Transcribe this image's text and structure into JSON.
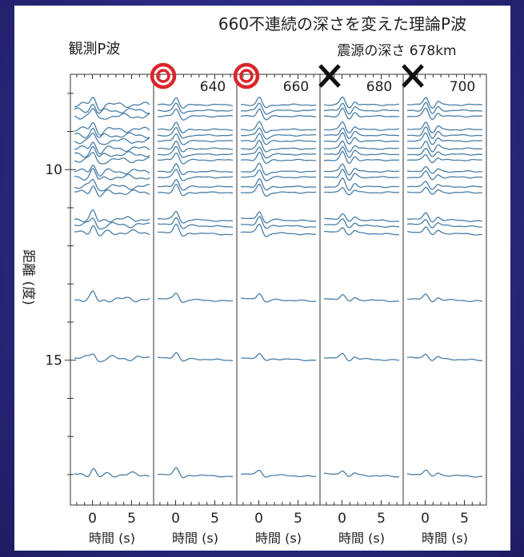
{
  "chart_data": {
    "type": "line",
    "title": "660不連続の深さを変えた理論P波",
    "observed_label": "観測P波",
    "hypocenter_label": "震源の深さ 678km",
    "ylabel": "距離 (度)",
    "ylim": [
      7.5,
      18.8
    ],
    "y_ticks": [
      10,
      15
    ],
    "xlim": [
      -2.5,
      7.5
    ],
    "x_ticks": [
      0,
      5
    ],
    "x_minor_ticks": [
      -2,
      -1,
      0,
      1,
      2,
      3,
      4,
      5,
      6,
      7
    ],
    "xlabel": "時間 (s)",
    "trace_color": "#4a7fa8",
    "panels": [
      {
        "label": "",
        "marker": "none"
      },
      {
        "label": "640",
        "marker": "double-circle",
        "marker_color": "#d9262c"
      },
      {
        "label": "660",
        "marker": "double-circle",
        "marker_color": "#d9262c"
      },
      {
        "label": "680",
        "marker": "cross",
        "marker_color": "#111111"
      },
      {
        "label": "700",
        "marker": "cross",
        "marker_color": "#111111"
      }
    ],
    "trace_distances": [
      8.3,
      8.45,
      8.6,
      8.95,
      9.1,
      9.25,
      9.45,
      9.6,
      9.75,
      10.05,
      10.2,
      10.45,
      10.6,
      11.3,
      11.45,
      11.65,
      13.4,
      14.95,
      18.0
    ]
  }
}
